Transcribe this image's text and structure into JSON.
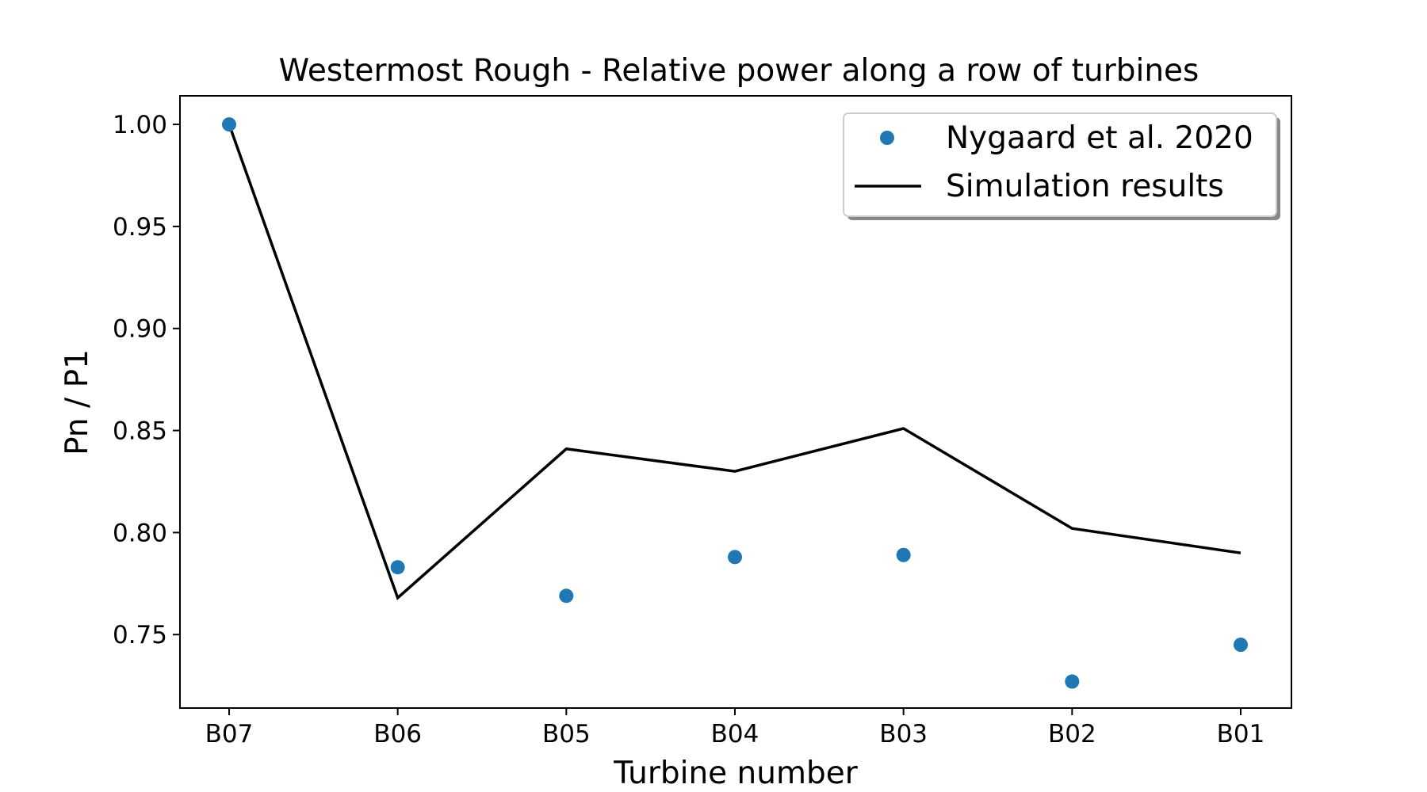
{
  "chart_data": {
    "type": "line",
    "title": "Westermost Rough - Relative power along a row of turbines",
    "xlabel": "Turbine number",
    "ylabel": "Pn / P1",
    "categories": [
      "B07",
      "B06",
      "B05",
      "B04",
      "B03",
      "B02",
      "B01"
    ],
    "ylim": [
      0.714,
      1.014
    ],
    "yticks": [
      0.75,
      0.8,
      0.85,
      0.9,
      0.95,
      1.0
    ],
    "ytick_labels": [
      "0.75",
      "0.80",
      "0.85",
      "0.90",
      "0.95",
      "1.00"
    ],
    "grid": false,
    "legend_position": "top-right",
    "series": [
      {
        "name": "Nygaard et al. 2020",
        "kind": "scatter",
        "color": "#1f77b4",
        "values": [
          1.0,
          0.783,
          0.769,
          0.788,
          0.789,
          0.727,
          0.745
        ]
      },
      {
        "name": "Simulation results",
        "kind": "line",
        "color": "#000000",
        "values": [
          1.0,
          0.768,
          0.841,
          0.83,
          0.851,
          0.802,
          0.79
        ]
      }
    ]
  }
}
